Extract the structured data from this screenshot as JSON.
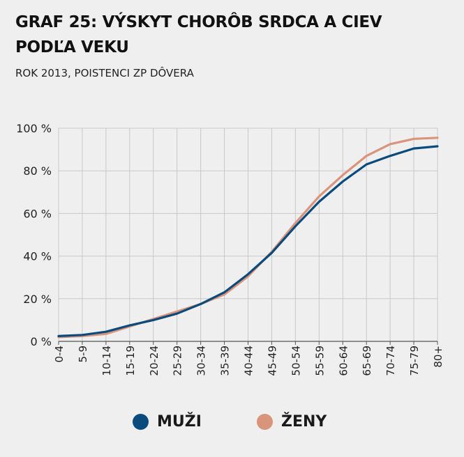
{
  "title_line1": "GRAF 25: VÝSKYT CHORÔB SRDCA A CIEV",
  "title_line2": "PODĽA VEKU",
  "subtitle": "ROK 2013, POISTENCI ZP DÔVERA",
  "colors": {
    "muzi": "#0b4a7d",
    "zeny": "#d9947c",
    "grid": "#c8c8c8",
    "axis": "#555555"
  },
  "legend": [
    {
      "label": "MUŽI",
      "color": "#0b4a7d"
    },
    {
      "label": "ŽENY",
      "color": "#d9947c"
    }
  ],
  "chart_data": {
    "type": "line",
    "title": "GRAF 25: VÝSKYT CHORÔB SRDCA A CIEV PODĽA VEKU",
    "subtitle": "ROK 2013, POISTENCI ZP DÔVERA",
    "categories": [
      "0-4",
      "5-9",
      "10-14",
      "15-19",
      "20-24",
      "25-29",
      "30-34",
      "35-39",
      "40-44",
      "45-49",
      "50-54",
      "55-59",
      "60-64",
      "65-69",
      "70-74",
      "75-79",
      "80+"
    ],
    "ylim": [
      0,
      100
    ],
    "yticks": [
      0,
      20,
      40,
      60,
      80,
      100
    ],
    "ytick_labels": [
      "0 %",
      "20 %",
      "40 %",
      "60 %",
      "80 %",
      "100 %"
    ],
    "grid": true,
    "legend_position": "bottom",
    "series": [
      {
        "name": "MUŽI",
        "values": [
          2.5,
          3,
          4.5,
          7.5,
          10,
          13,
          17.5,
          23,
          31.5,
          41.5,
          54,
          65.5,
          75,
          83,
          87,
          90.5,
          91.5
        ]
      },
      {
        "name": "ŽENY",
        "values": [
          2,
          2.5,
          3.5,
          7,
          10.5,
          14,
          17.5,
          22,
          30.5,
          42,
          55.5,
          68,
          78,
          87,
          92.5,
          95,
          95.5
        ]
      }
    ]
  }
}
